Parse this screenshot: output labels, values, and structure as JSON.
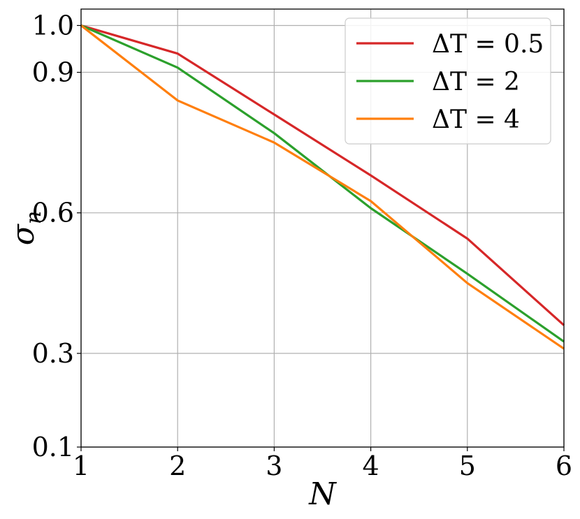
{
  "chart_data": {
    "type": "line",
    "xlabel": "N",
    "ylabel_symbol": "σ",
    "ylabel_subscript": "n",
    "xlim": [
      1,
      6
    ],
    "ylim": [
      0.1,
      1.035
    ],
    "xticks": [
      1,
      2,
      3,
      4,
      5,
      6
    ],
    "xtick_labels": [
      "1",
      "2",
      "3",
      "4",
      "5",
      "6"
    ],
    "yticks": [
      0.1,
      0.3,
      0.6,
      0.9,
      1.0
    ],
    "ytick_labels": [
      "0.1",
      "0.3",
      "0.6",
      "0.9",
      "1.0"
    ],
    "grid": true,
    "legend_position": "top-right",
    "series": [
      {
        "name": "ΔT = 0.5",
        "color": "#d62728",
        "x": [
          1,
          2,
          3,
          4,
          5,
          6
        ],
        "values": [
          1.0,
          0.94,
          0.81,
          0.68,
          0.545,
          0.36
        ]
      },
      {
        "name": "ΔT = 2",
        "color": "#2ca02c",
        "x": [
          1,
          2,
          3,
          4,
          5,
          6
        ],
        "values": [
          1.0,
          0.91,
          0.77,
          0.61,
          0.47,
          0.325
        ]
      },
      {
        "name": "ΔT = 4",
        "color": "#ff7f0e",
        "x": [
          1,
          2,
          3,
          4,
          5,
          6
        ],
        "values": [
          1.0,
          0.84,
          0.75,
          0.625,
          0.45,
          0.31
        ]
      }
    ]
  }
}
